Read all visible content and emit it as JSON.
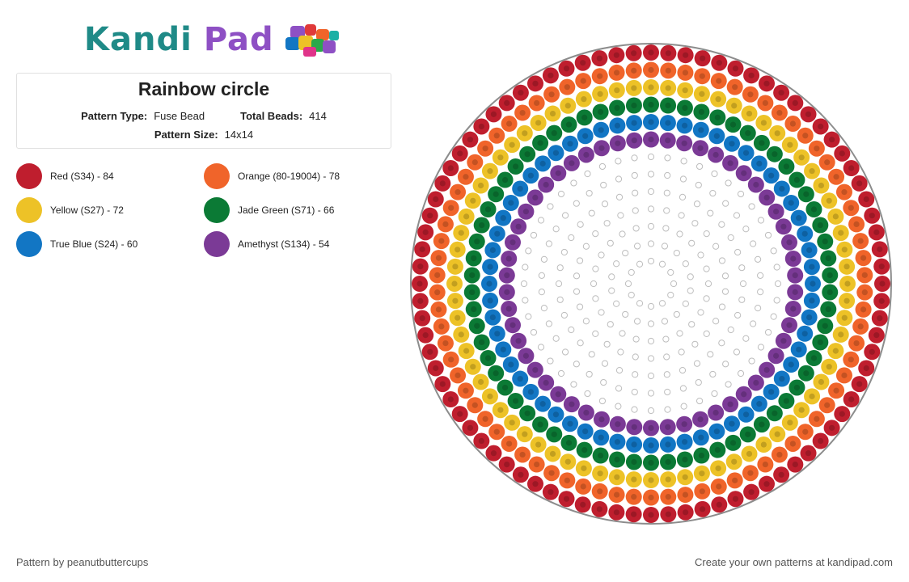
{
  "brand": {
    "logo_part1": "Kandi",
    "logo_part2": "Pad"
  },
  "pattern": {
    "title": "Rainbow circle",
    "type_label": "Pattern Type:",
    "type_value": "Fuse Bead",
    "beads_label": "Total Beads:",
    "beads_value": "414",
    "size_label": "Pattern Size:",
    "size_value": "14x14"
  },
  "legend": [
    {
      "label": "Red (S34) - 84",
      "color": "#bf1e2e"
    },
    {
      "label": "Orange (80-19004) - 78",
      "color": "#f0642a"
    },
    {
      "label": "Yellow (S27) - 72",
      "color": "#edc227"
    },
    {
      "label": "Jade Green (S71) - 66",
      "color": "#0b7a35"
    },
    {
      "label": "True Blue (S24) - 60",
      "color": "#1276c4"
    },
    {
      "label": "Amethyst (S134) - 54",
      "color": "#7b3a96"
    }
  ],
  "board": {
    "outline_color": "#8c8c8c",
    "empty_peg_color": "#bdbdbd",
    "ring_counts": [
      84,
      78,
      72,
      66,
      60,
      54
    ]
  },
  "footer": {
    "credit": "Pattern by peanutbuttercups",
    "promo": "Create your own patterns at kandipad.com"
  }
}
